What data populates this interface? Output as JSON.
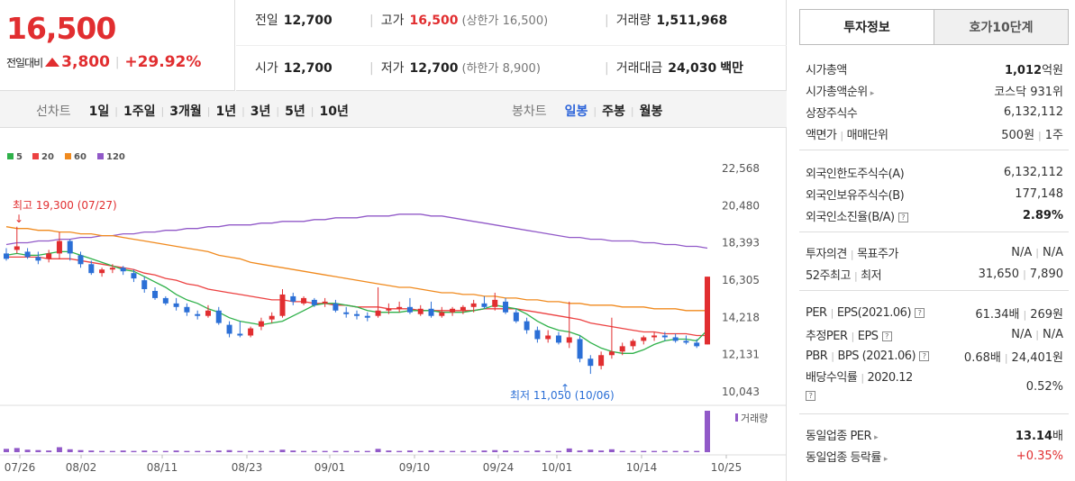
{
  "price": {
    "current": "16,500",
    "change_label": "전일대비",
    "change_value": "3,800",
    "change_sep": "|",
    "change_rate": "+29.92%"
  },
  "quote": {
    "prev_label": "전일",
    "prev_value": "12,700",
    "high_label": "고가",
    "high_value": "16,500",
    "high_sub": "(상한가 16,500)",
    "vol_label": "거래량",
    "vol_value": "1,511,968",
    "open_label": "시가",
    "open_value": "12,700",
    "low_label": "저가",
    "low_value": "12,700",
    "low_sub": "(하한가 8,900)",
    "amt_label": "거래대금",
    "amt_value": "24,030",
    "amt_unit": "백만"
  },
  "period": {
    "line_title": "선차트",
    "line_buttons": [
      "1일",
      "1주일",
      "3개월",
      "1년",
      "3년",
      "5년",
      "10년"
    ],
    "candle_title": "봉차트",
    "candle_buttons": [
      "일봉",
      "주봉",
      "월봉"
    ],
    "candle_active": "일봉"
  },
  "chart_data": {
    "type": "candlestick",
    "legend": [
      {
        "name": "5",
        "color": "#2fb14a"
      },
      {
        "name": "20",
        "color": "#ec4141"
      },
      {
        "name": "60",
        "color": "#f08a1e"
      },
      {
        "name": "120",
        "color": "#9159c8"
      }
    ],
    "y_ticks": [
      "22,568",
      "20,480",
      "18,393",
      "16,305",
      "14,218",
      "12,131",
      "10,043"
    ],
    "ylim": [
      10043,
      22568
    ],
    "x_ticks": [
      "07/26",
      "08/02",
      "08/11",
      "08/23",
      "09/01",
      "09/10",
      "09/24",
      "10/01",
      "10/14",
      "10/25"
    ],
    "high_annotation": "최고 19,300 (07/27)",
    "low_annotation": "최저 11,050 (10/06)",
    "volume_label": "거래량",
    "candles": [
      [
        17800,
        18100,
        17400,
        17500
      ],
      [
        18000,
        19300,
        17800,
        18200
      ],
      [
        17900,
        18100,
        17500,
        17600
      ],
      [
        17600,
        17900,
        17200,
        17400
      ],
      [
        17500,
        18000,
        17300,
        17800
      ],
      [
        17800,
        19000,
        17500,
        18500
      ],
      [
        18500,
        18600,
        17400,
        17800
      ],
      [
        17700,
        17900,
        17000,
        17200
      ],
      [
        17200,
        17400,
        16600,
        16700
      ],
      [
        16700,
        17000,
        16500,
        16900
      ],
      [
        16900,
        17200,
        16700,
        17000
      ],
      [
        17000,
        17100,
        16600,
        16800
      ],
      [
        16700,
        16900,
        16200,
        16400
      ],
      [
        16300,
        16500,
        15600,
        15800
      ],
      [
        15700,
        15900,
        15200,
        15300
      ],
      [
        15300,
        15400,
        14900,
        15000
      ],
      [
        15000,
        15300,
        14600,
        14800
      ],
      [
        14800,
        15000,
        14300,
        14500
      ],
      [
        14400,
        14600,
        14100,
        14300
      ],
      [
        14300,
        14900,
        14200,
        14600
      ],
      [
        14600,
        14800,
        13800,
        13900
      ],
      [
        13800,
        14000,
        13100,
        13300
      ],
      [
        13300,
        14000,
        13100,
        13200
      ],
      [
        13200,
        13700,
        13100,
        13600
      ],
      [
        13700,
        14200,
        13500,
        14000
      ],
      [
        14100,
        14500,
        13900,
        14300
      ],
      [
        14300,
        15800,
        14200,
        15500
      ],
      [
        15400,
        15600,
        14900,
        15100
      ],
      [
        15000,
        15400,
        14900,
        15300
      ],
      [
        15200,
        15300,
        14800,
        14900
      ],
      [
        15000,
        15300,
        14800,
        15100
      ],
      [
        15000,
        15200,
        14500,
        14600
      ],
      [
        14500,
        14800,
        14200,
        14400
      ],
      [
        14400,
        14600,
        14100,
        14300
      ],
      [
        14300,
        14500,
        14000,
        14200
      ],
      [
        14300,
        15900,
        14200,
        14600
      ],
      [
        14600,
        15000,
        14400,
        14700
      ],
      [
        14700,
        15100,
        14500,
        14800
      ],
      [
        14800,
        15300,
        14400,
        14500
      ],
      [
        14400,
        14900,
        14300,
        14700
      ],
      [
        14700,
        15100,
        14200,
        14300
      ],
      [
        14300,
        14800,
        14200,
        14500
      ],
      [
        14500,
        14800,
        14300,
        14700
      ],
      [
        14600,
        14900,
        14400,
        14800
      ],
      [
        14800,
        15200,
        14500,
        15000
      ],
      [
        15000,
        15400,
        14700,
        14800
      ],
      [
        14800,
        15600,
        14600,
        15200
      ],
      [
        15100,
        15300,
        14400,
        14500
      ],
      [
        14500,
        14700,
        13900,
        14000
      ],
      [
        14000,
        14200,
        13300,
        13500
      ],
      [
        13500,
        13700,
        12800,
        13000
      ],
      [
        13000,
        13500,
        12800,
        13200
      ],
      [
        13200,
        13400,
        12700,
        12800
      ],
      [
        12800,
        15100,
        12500,
        13100
      ],
      [
        13000,
        13200,
        11700,
        11900
      ],
      [
        11900,
        12100,
        11050,
        11500
      ],
      [
        11500,
        12300,
        11300,
        12100
      ],
      [
        12100,
        14200,
        11900,
        12300
      ],
      [
        12300,
        12800,
        12100,
        12600
      ],
      [
        12600,
        13000,
        12400,
        12900
      ],
      [
        12900,
        13200,
        12700,
        13100
      ],
      [
        13100,
        13400,
        12900,
        13200
      ],
      [
        13200,
        13400,
        12900,
        13100
      ],
      [
        13100,
        13300,
        12800,
        12900
      ],
      [
        12900,
        13200,
        12700,
        12800
      ],
      [
        12800,
        13000,
        12500,
        12600
      ],
      [
        12700,
        16500,
        12700,
        16500
      ]
    ],
    "ma5": [
      17700,
      17800,
      17700,
      17700,
      17800,
      17900,
      17900,
      17700,
      17500,
      17300,
      17100,
      16900,
      16800,
      16500,
      16200,
      15900,
      15500,
      15200,
      15000,
      14700,
      14500,
      14200,
      14000,
      13900,
      13800,
      13900,
      14000,
      14300,
      14600,
      14900,
      15000,
      15000,
      14900,
      14800,
      14600,
      14500,
      14500,
      14500,
      14600,
      14600,
      14600,
      14500,
      14500,
      14500,
      14600,
      14700,
      14900,
      14800,
      14700,
      14400,
      14000,
      13700,
      13500,
      13400,
      13200,
      12800,
      12500,
      12300,
      12200,
      12200,
      12400,
      12700,
      12900,
      13000,
      13000,
      12900,
      13500
    ],
    "ma20": [
      17600,
      17600,
      17600,
      17600,
      17500,
      17500,
      17500,
      17400,
      17300,
      17200,
      17100,
      17000,
      16900,
      16700,
      16600,
      16400,
      16300,
      16100,
      16000,
      15800,
      15700,
      15600,
      15500,
      15400,
      15300,
      15200,
      15200,
      15100,
      15100,
      15000,
      15000,
      14900,
      14900,
      14800,
      14800,
      14800,
      14700,
      14700,
      14700,
      14600,
      14600,
      14600,
      14600,
      14600,
      14600,
      14700,
      14700,
      14700,
      14700,
      14600,
      14500,
      14400,
      14300,
      14200,
      14100,
      13900,
      13800,
      13700,
      13600,
      13500,
      13400,
      13400,
      13300,
      13300,
      13300,
      13200,
      13200
    ],
    "ma60": [
      19300,
      19200,
      19200,
      19100,
      19100,
      19000,
      19000,
      18900,
      18900,
      18800,
      18800,
      18700,
      18600,
      18500,
      18400,
      18300,
      18200,
      18100,
      18000,
      17900,
      17700,
      17600,
      17500,
      17300,
      17200,
      17100,
      17000,
      16900,
      16800,
      16700,
      16600,
      16500,
      16400,
      16300,
      16200,
      16100,
      16000,
      15900,
      15900,
      15800,
      15700,
      15600,
      15600,
      15500,
      15500,
      15400,
      15400,
      15300,
      15300,
      15200,
      15200,
      15100,
      15100,
      15000,
      15000,
      14900,
      14900,
      14900,
      14800,
      14800,
      14800,
      14700,
      14700,
      14700,
      14600,
      14600,
      14600
    ],
    "ma120": [
      18300,
      18400,
      18400,
      18500,
      18500,
      18600,
      18600,
      18700,
      18700,
      18800,
      18800,
      18900,
      18900,
      19000,
      19000,
      19100,
      19100,
      19200,
      19200,
      19300,
      19300,
      19400,
      19400,
      19400,
      19500,
      19500,
      19600,
      19600,
      19600,
      19700,
      19700,
      19800,
      19800,
      19800,
      19900,
      19900,
      19900,
      20000,
      20000,
      20000,
      19900,
      19900,
      19800,
      19700,
      19600,
      19500,
      19400,
      19300,
      19200,
      19100,
      19000,
      18900,
      18800,
      18700,
      18700,
      18600,
      18600,
      18500,
      18500,
      18500,
      18400,
      18400,
      18300,
      18300,
      18200,
      18200,
      18100
    ],
    "volume": [
      8,
      10,
      6,
      5,
      4,
      12,
      7,
      5,
      4,
      3,
      3,
      4,
      3,
      4,
      3,
      3,
      4,
      3,
      3,
      3,
      4,
      5,
      3,
      3,
      3,
      3,
      6,
      4,
      3,
      3,
      3,
      3,
      3,
      3,
      3,
      8,
      4,
      3,
      4,
      3,
      4,
      3,
      3,
      3,
      3,
      4,
      5,
      4,
      3,
      3,
      4,
      3,
      3,
      9,
      4,
      6,
      4,
      7,
      3,
      3,
      3,
      3,
      3,
      3,
      3,
      3,
      100
    ]
  },
  "tabs": {
    "active": "투자정보",
    "inactive": "호가10단계"
  },
  "info": {
    "s1": [
      {
        "k": "시가총액",
        "v_bold": "1,012",
        "v_rest": "억원"
      },
      {
        "k": "시가총액순위",
        "v": "코스닥 931위"
      },
      {
        "k": "상장주식수",
        "v": "6,132,112"
      },
      {
        "k1": "액면가",
        "k2": "매매단위",
        "v1": "500원",
        "v2": "1주"
      }
    ],
    "s2": [
      {
        "k": "외국인한도주식수(A)",
        "v": "6,132,112"
      },
      {
        "k": "외국인보유주식수(B)",
        "v": "177,148"
      },
      {
        "k": "외국인소진율(B/A)",
        "v": "2.89%"
      }
    ],
    "s3": [
      {
        "k1": "투자의견",
        "k2": "목표주가",
        "v1": "N/A",
        "v2": "N/A"
      },
      {
        "k1": "52주최고",
        "k2": "최저",
        "v1": "31,650",
        "v2": "7,890"
      }
    ],
    "s4": {
      "per_k1": "PER",
      "per_k2": "EPS(2021.06)",
      "per_v1": "61.34배",
      "per_v2": "269원",
      "eper_k1": "추정PER",
      "eper_k2": "EPS",
      "eper_v1": "N/A",
      "eper_v2": "N/A",
      "pbr_k1": "PBR",
      "pbr_k2": "BPS (2021.06)",
      "pbr_v1": "0.68배",
      "pbr_v2": "24,401원",
      "div_k1": "배당수익률",
      "div_k2": "2020.12",
      "div_v": "0.52%"
    },
    "s5": [
      {
        "k": "동일업종 PER",
        "v_bold": "13.14",
        "v_rest": "배"
      },
      {
        "k": "동일업종 등락률",
        "v": "+0.35%"
      }
    ]
  }
}
